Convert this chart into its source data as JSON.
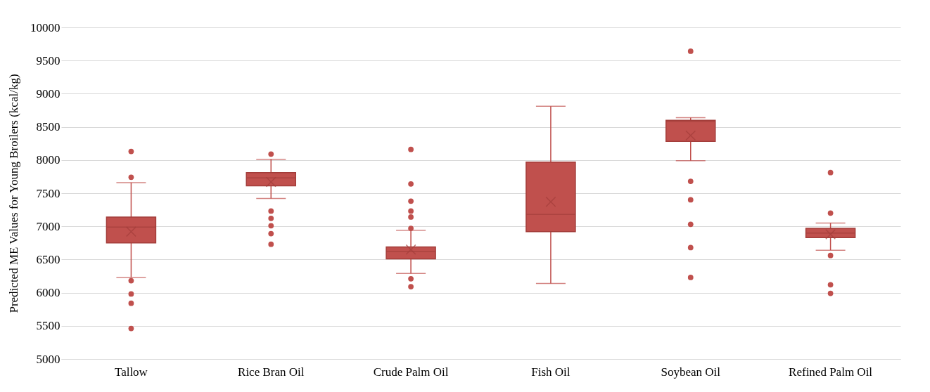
{
  "chart_data": {
    "type": "box",
    "ylabel": "Predicted ME Values for Young Broilers (kcal/kg)",
    "categories": [
      "Tallow",
      "Rice Bran Oil",
      "Crude Palm Oil",
      "Fish Oil",
      "Soybean Oil",
      "Refined Palm Oil"
    ],
    "series": [
      {
        "color": "#c0504d",
        "boxes": [
          {
            "low": 6230,
            "q1": 6750,
            "median": 6990,
            "q3": 7140,
            "high": 7660,
            "mean": 6920,
            "outliers": [
              8130,
              7740,
              6180,
              5980,
              5840,
              5460
            ]
          },
          {
            "low": 7420,
            "q1": 7610,
            "median": 7730,
            "q3": 7810,
            "high": 8010,
            "mean": 7670,
            "outliers": [
              8090,
              7230,
              7120,
              7010,
              6890,
              6730
            ]
          },
          {
            "low": 6290,
            "q1": 6510,
            "median": 6620,
            "q3": 6690,
            "high": 6940,
            "mean": 6650,
            "outliers": [
              8160,
              7640,
              7380,
              7230,
              7140,
              6970,
              6210,
              6090
            ]
          },
          {
            "low": 6140,
            "q1": 6920,
            "median": 7180,
            "q3": 7970,
            "high": 8810,
            "mean": 7370
          },
          {
            "low": 7990,
            "q1": 8280,
            "median": 8580,
            "q3": 8600,
            "high": 8640,
            "mean": 8370,
            "outliers": [
              9640,
              7680,
              7400,
              7030,
              6680,
              6230
            ]
          },
          {
            "low": 6640,
            "q1": 6830,
            "median": 6900,
            "q3": 6970,
            "high": 7050,
            "mean": 6880,
            "outliers": [
              7810,
              7200,
              6560,
              6120,
              5990
            ]
          }
        ]
      }
    ],
    "ylim": [
      5000,
      10000
    ],
    "yticks": [
      5000,
      5500,
      6000,
      6500,
      7000,
      7500,
      8000,
      8500,
      9000,
      9500,
      10000
    ],
    "grid": "y",
    "marker": "circle"
  }
}
